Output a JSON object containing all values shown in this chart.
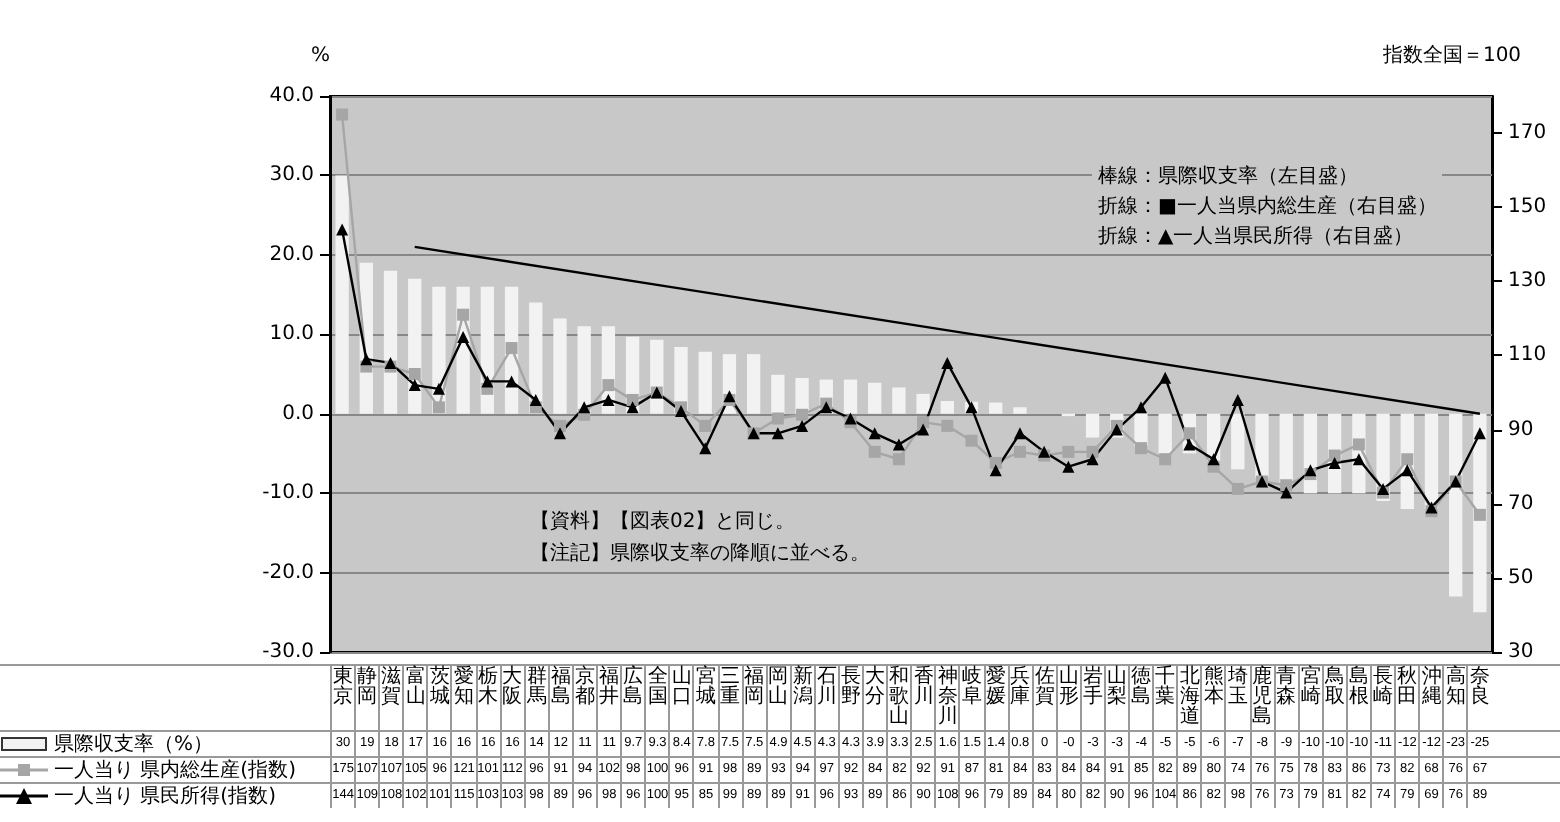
{
  "chart_data": {
    "type": "bar",
    "categories": [
      "東京",
      "静岡",
      "滋賀",
      "富山",
      "茨城",
      "愛知",
      "栃木",
      "大阪",
      "群馬",
      "福島",
      "京都",
      "福井",
      "広島",
      "全国",
      "山口",
      "宮城",
      "三重",
      "福岡",
      "岡山",
      "新潟",
      "石川",
      "長野",
      "大分",
      "和歌山",
      "香川",
      "神奈川",
      "岐阜",
      "愛媛",
      "兵庫",
      "佐賀",
      "山形",
      "岩手",
      "山梨",
      "徳島",
      "千葉",
      "北海道",
      "熊本",
      "埼玉",
      "鹿児島",
      "青森",
      "宮崎",
      "鳥取",
      "島根",
      "長崎",
      "秋田",
      "沖縄",
      "高知",
      "奈良"
    ],
    "series": [
      {
        "name": "県際収支率（%）",
        "color": "#f2f2f2",
        "values": [
          30,
          19,
          18,
          17,
          16,
          16,
          16,
          16,
          14,
          12,
          11,
          11,
          9.7,
          9.3,
          8.4,
          7.8,
          7.5,
          7.5,
          4.9,
          4.5,
          4.3,
          4.3,
          3.9,
          3.3,
          2.5,
          1.6,
          1.5,
          1.4,
          0.8,
          0,
          -0.3,
          -3,
          -3,
          -4,
          -5,
          -5,
          -6,
          -7,
          -8,
          -9,
          -10,
          -10,
          -10,
          -11,
          -12,
          -12,
          -23,
          -25
        ],
        "value_labels": [
          "30",
          "19",
          "18",
          "17",
          "16",
          "16",
          "16",
          "16",
          "14",
          "12",
          "11",
          "11",
          "9.7",
          "9.3",
          "8.4",
          "7.8",
          "7.5",
          "7.5",
          "4.9",
          "4.5",
          "4.3",
          "4.3",
          "3.9",
          "3.3",
          "2.5",
          "1.6",
          "1.5",
          "1.4",
          "0.8",
          "0",
          "-0",
          "-3",
          "-3",
          "-4",
          "-5",
          "-5",
          "-6",
          "-7",
          "-8",
          "-9",
          "-10",
          "-10",
          "-10",
          "-11",
          "-12",
          "-12",
          "-23",
          "-25"
        ]
      },
      {
        "name": "一人当り 県内総生産(指数)",
        "type": "line",
        "color": "#a6a6a6",
        "marker": "square",
        "axis": "y2",
        "values": [
          175,
          107,
          107,
          105,
          96,
          121,
          101,
          112,
          96,
          91,
          94,
          102,
          98,
          100,
          96,
          91,
          98,
          89,
          93,
          94,
          97,
          92,
          84,
          82,
          92,
          91,
          87,
          81,
          84,
          83,
          84,
          84,
          91,
          85,
          82,
          89,
          80,
          74,
          76,
          75,
          78,
          83,
          86,
          73,
          82,
          68,
          76,
          67
        ]
      },
      {
        "name": "一人当り 県民所得(指数)",
        "type": "line",
        "color": "#000000",
        "marker": "triangle",
        "axis": "y2",
        "values": [
          144,
          109,
          108,
          102,
          101,
          115,
          103,
          103,
          98,
          89,
          96,
          98,
          96,
          100,
          95,
          85,
          99,
          89,
          89,
          91,
          96,
          93,
          89,
          86,
          90,
          108,
          96,
          79,
          89,
          84,
          80,
          82,
          90,
          96,
          104,
          86,
          82,
          98,
          76,
          73,
          79,
          81,
          82,
          74,
          79,
          69,
          76,
          89
        ]
      },
      {
        "type": "line",
        "color": "#000000",
        "marker": "none",
        "x": [
          "富山",
          "奈良"
        ],
        "values": [
          21,
          0
        ],
        "value_labels": [
          null,
          null
        ]
      }
    ],
    "ylabel": "%",
    "y2label": "指数全国＝100",
    "data_labels": true,
    "legend": "bottom left",
    "ylim": [
      -30,
      40
    ],
    "yticks": [
      {
        "value": -30,
        "label": "-30.0"
      },
      {
        "value": -20,
        "label": "-20.0"
      },
      {
        "value": -10,
        "label": "-10.0"
      },
      {
        "value": 0,
        "label": "0.0"
      },
      {
        "value": 10,
        "label": "10.0"
      },
      {
        "value": 20,
        "label": "20.0"
      },
      {
        "value": 30,
        "label": "30.0"
      },
      {
        "value": 40,
        "label": "40.0"
      }
    ],
    "y2lim": [
      30,
      180
    ],
    "y2ticks": [
      30,
      50,
      70,
      90,
      110,
      130,
      150,
      170
    ],
    "grid": "y",
    "annotations": [
      "棒線：県際収支率（左目盛）",
      "折線：■一人当県内総生産（右目盛）",
      "折線：▲一人当県民所得（右目盛）",
      "【資料】【図表02】と同じ。",
      "【注記】県際収支率の降順に並べる。"
    ]
  }
}
